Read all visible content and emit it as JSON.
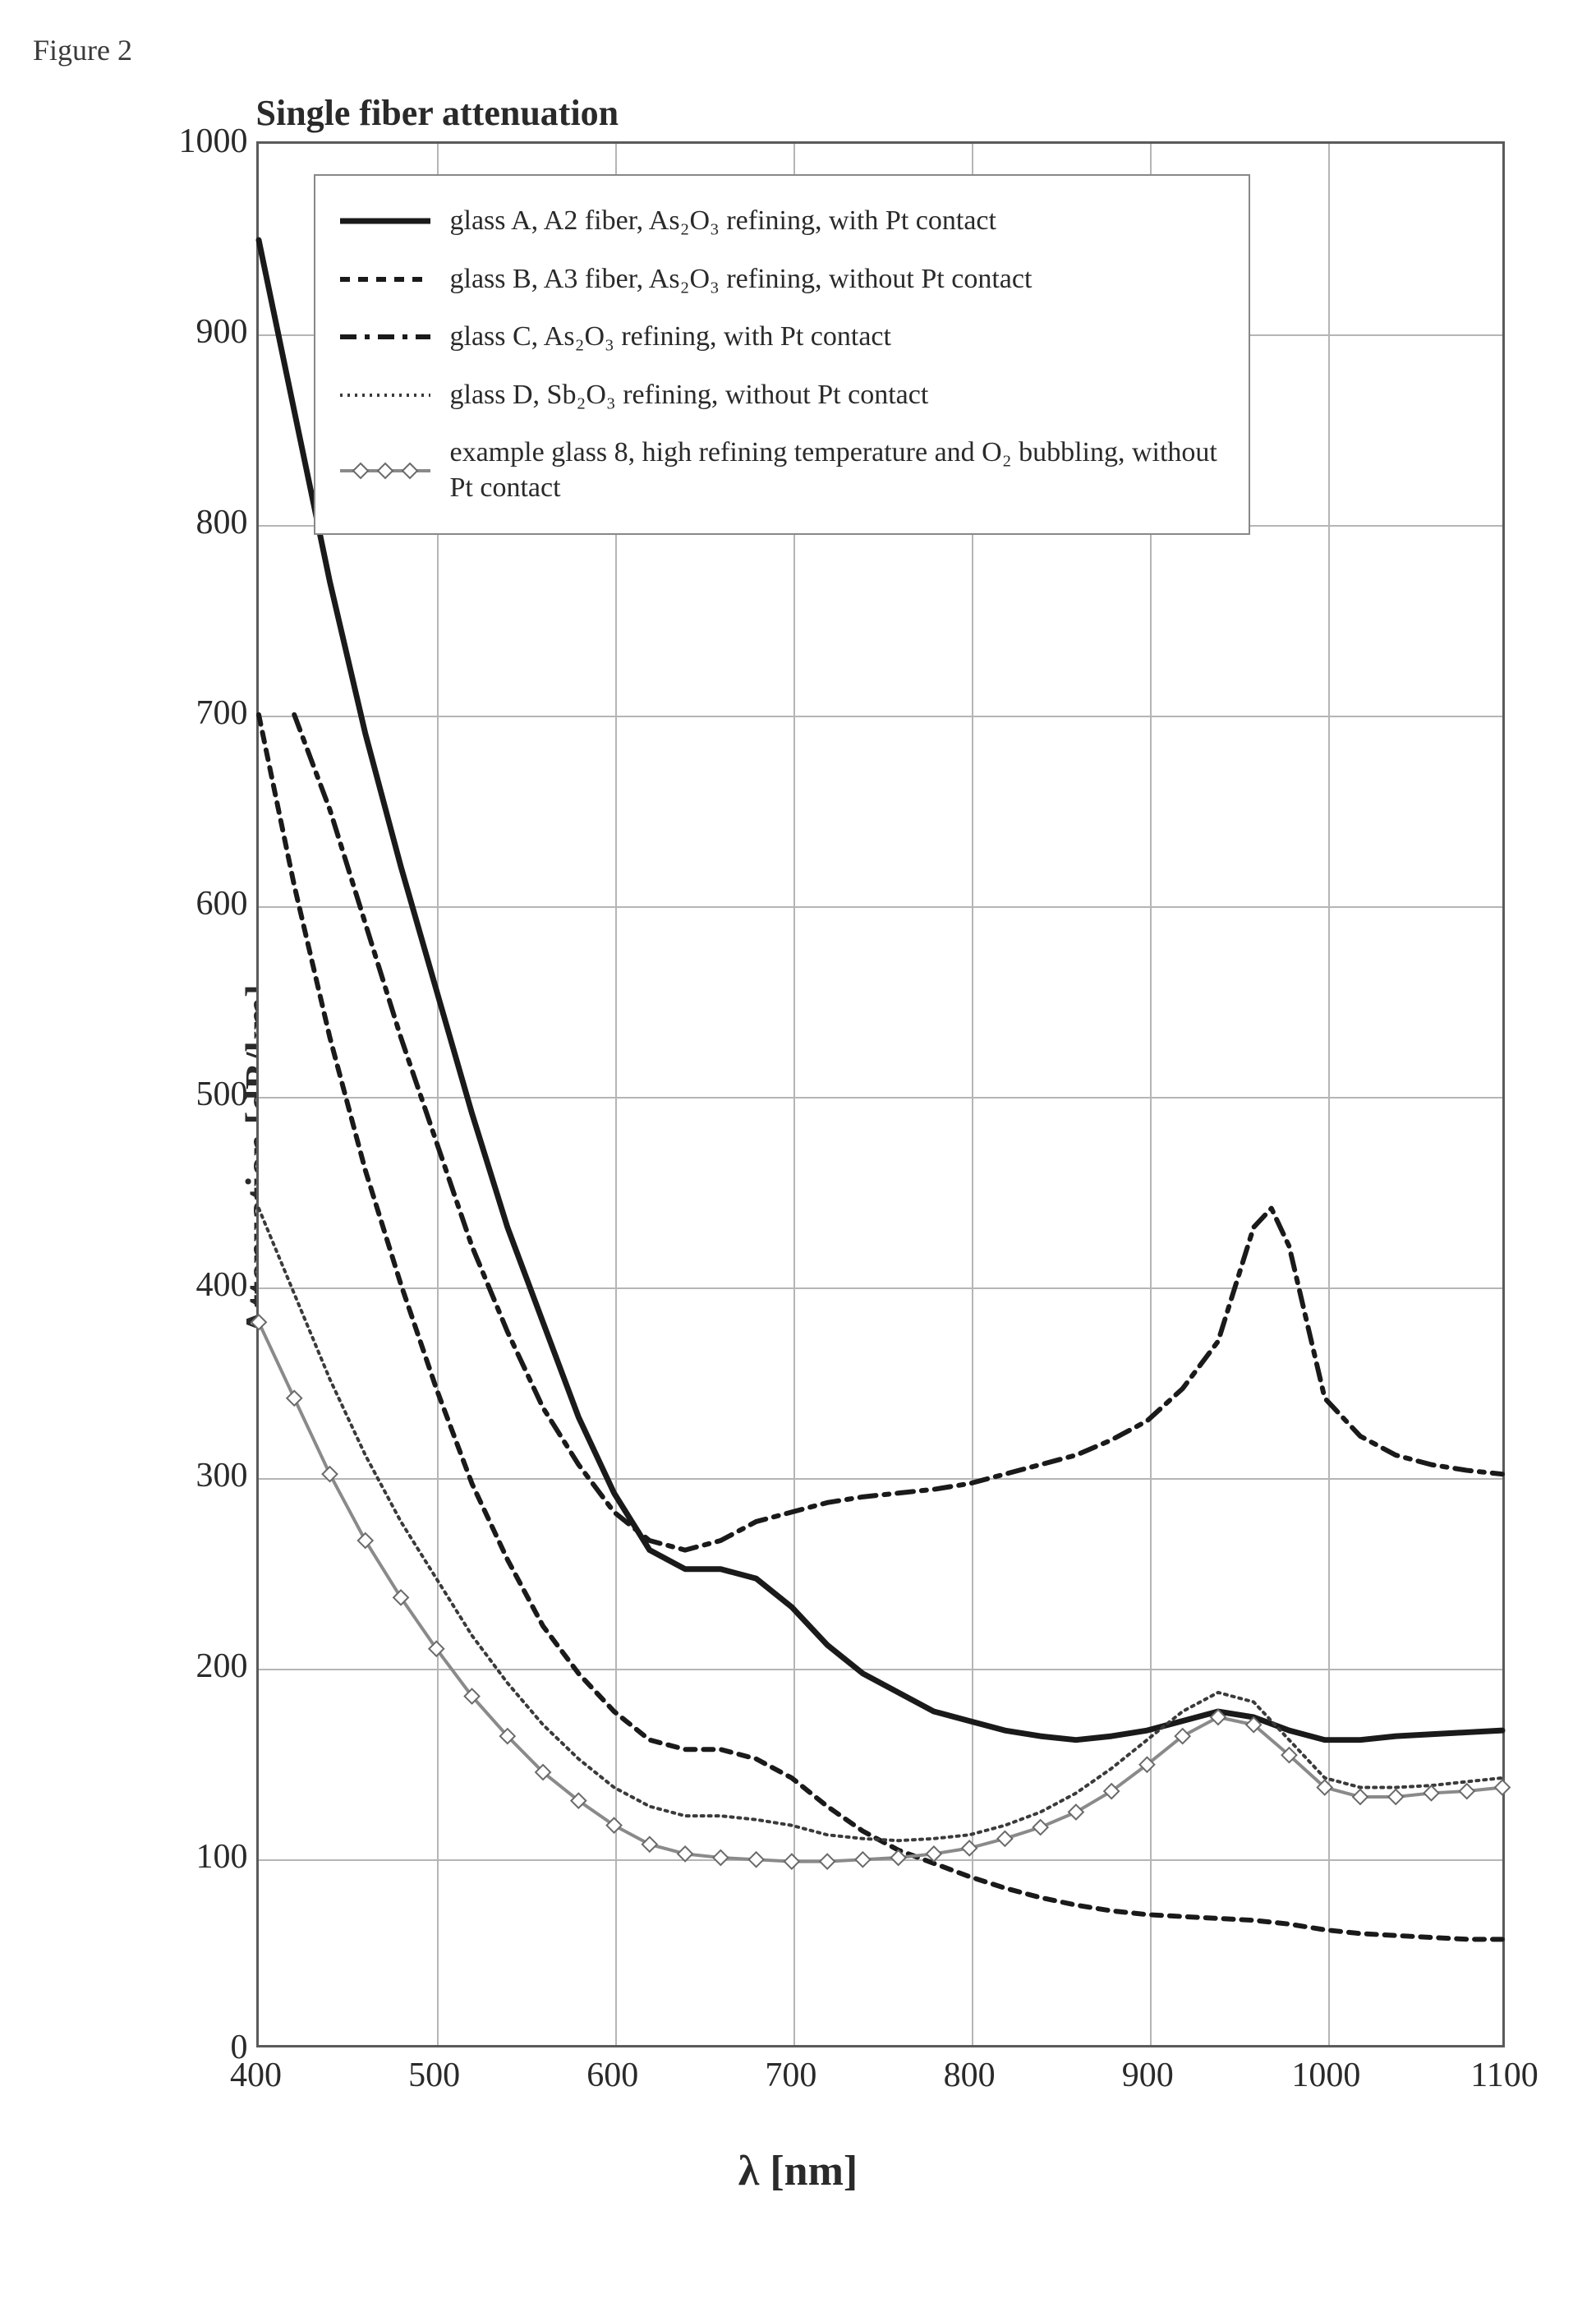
{
  "figure_label": "Figure 2",
  "chart": {
    "type": "line",
    "title": "Single fiber attenuation",
    "title_fontsize": 44,
    "xlabel": "λ [nm]",
    "ylabel": "Attenuation [dB/km]",
    "label_fontsize": 48,
    "tick_fontsize": 42,
    "xlim": [
      400,
      1100
    ],
    "ylim": [
      0,
      1000
    ],
    "xtick_step": 100,
    "ytick_step": 100,
    "xticks": [
      400,
      500,
      600,
      700,
      800,
      900,
      1000,
      1100
    ],
    "yticks": [
      0,
      100,
      200,
      300,
      400,
      500,
      600,
      700,
      800,
      900,
      1000
    ],
    "background_color": "#ffffff",
    "grid_color": "#b5b5b5",
    "border_color": "#5a5a5a",
    "legend": {
      "position": "upper-left-inside",
      "border_color": "#888888",
      "bg_color": "#ffffff",
      "fontsize": 34
    },
    "series": [
      {
        "id": "glass_A",
        "label": "glass A, A2 fiber, As₂O₃ refining, with Pt contact",
        "color": "#1a1a1a",
        "line_width": 7,
        "dash": "solid",
        "marker": "none",
        "x": [
          400,
          420,
          440,
          460,
          480,
          500,
          520,
          540,
          560,
          580,
          600,
          620,
          640,
          660,
          680,
          700,
          720,
          740,
          760,
          780,
          800,
          820,
          840,
          860,
          880,
          900,
          920,
          940,
          960,
          980,
          1000,
          1020,
          1040,
          1060,
          1080,
          1100
        ],
        "y": [
          950,
          860,
          770,
          690,
          620,
          555,
          490,
          430,
          380,
          330,
          290,
          260,
          250,
          250,
          245,
          230,
          210,
          195,
          185,
          175,
          170,
          165,
          162,
          160,
          162,
          165,
          170,
          175,
          172,
          165,
          160,
          160,
          162,
          163,
          164,
          165
        ]
      },
      {
        "id": "glass_B",
        "label": "glass B, A3 fiber, As₂O₃ refining, without Pt contact",
        "color": "#1a1a1a",
        "line_width": 6,
        "dash": "12,10",
        "marker": "none",
        "x": [
          400,
          420,
          440,
          460,
          480,
          500,
          520,
          540,
          560,
          580,
          600,
          620,
          640,
          660,
          680,
          700,
          720,
          740,
          760,
          780,
          800,
          820,
          840,
          860,
          880,
          900,
          920,
          940,
          960,
          980,
          1000,
          1020,
          1040,
          1060,
          1080,
          1100
        ],
        "y": [
          700,
          610,
          530,
          460,
          400,
          345,
          295,
          255,
          220,
          195,
          175,
          160,
          155,
          155,
          150,
          140,
          125,
          112,
          102,
          95,
          88,
          82,
          77,
          73,
          70,
          68,
          67,
          66,
          65,
          63,
          60,
          58,
          57,
          56,
          55,
          55
        ]
      },
      {
        "id": "glass_C",
        "label": "glass C, As₂O₃ refining, with Pt contact",
        "color": "#1a1a1a",
        "line_width": 6,
        "dash": "20,10,6,10",
        "marker": "none",
        "x": [
          420,
          440,
          460,
          480,
          500,
          520,
          540,
          560,
          580,
          600,
          620,
          640,
          660,
          680,
          700,
          720,
          740,
          760,
          780,
          800,
          820,
          840,
          860,
          880,
          900,
          920,
          940,
          950,
          960,
          970,
          980,
          990,
          1000,
          1020,
          1040,
          1060,
          1080,
          1100
        ],
        "y": [
          700,
          650,
          590,
          530,
          475,
          420,
          375,
          335,
          305,
          280,
          265,
          260,
          265,
          275,
          280,
          285,
          288,
          290,
          292,
          295,
          300,
          305,
          310,
          318,
          328,
          345,
          370,
          400,
          430,
          440,
          420,
          380,
          340,
          320,
          310,
          305,
          302,
          300
        ]
      },
      {
        "id": "glass_D",
        "label": "glass D, Sb₂O₃ refining, without Pt contact",
        "color": "#3a3a3a",
        "line_width": 4,
        "dash": "3,6",
        "marker": "none",
        "x": [
          400,
          420,
          440,
          460,
          480,
          500,
          520,
          540,
          560,
          580,
          600,
          620,
          640,
          660,
          680,
          700,
          720,
          740,
          760,
          780,
          800,
          820,
          840,
          860,
          880,
          900,
          920,
          940,
          960,
          980,
          1000,
          1020,
          1040,
          1060,
          1080,
          1100
        ],
        "y": [
          440,
          395,
          350,
          310,
          275,
          245,
          215,
          190,
          168,
          150,
          135,
          125,
          120,
          120,
          118,
          115,
          110,
          108,
          107,
          108,
          110,
          115,
          122,
          132,
          145,
          160,
          175,
          185,
          180,
          160,
          140,
          135,
          135,
          136,
          138,
          140
        ]
      },
      {
        "id": "glass_8",
        "label": "example glass 8, high refining temperature and O₂ bubbling, without Pt contact",
        "color": "#8a8a8a",
        "line_width": 4,
        "dash": "solid",
        "marker": "diamond",
        "marker_size": 9,
        "marker_fill": "#ffffff",
        "marker_stroke": "#6a6a6a",
        "x": [
          400,
          420,
          440,
          460,
          480,
          500,
          520,
          540,
          560,
          580,
          600,
          620,
          640,
          660,
          680,
          700,
          720,
          740,
          760,
          780,
          800,
          820,
          840,
          860,
          880,
          900,
          920,
          940,
          960,
          980,
          1000,
          1020,
          1040,
          1060,
          1080,
          1100
        ],
        "y": [
          380,
          340,
          300,
          265,
          235,
          208,
          183,
          162,
          143,
          128,
          115,
          105,
          100,
          98,
          97,
          96,
          96,
          97,
          98,
          100,
          103,
          108,
          114,
          122,
          133,
          147,
          162,
          172,
          168,
          152,
          135,
          130,
          130,
          132,
          133,
          135
        ]
      }
    ]
  }
}
